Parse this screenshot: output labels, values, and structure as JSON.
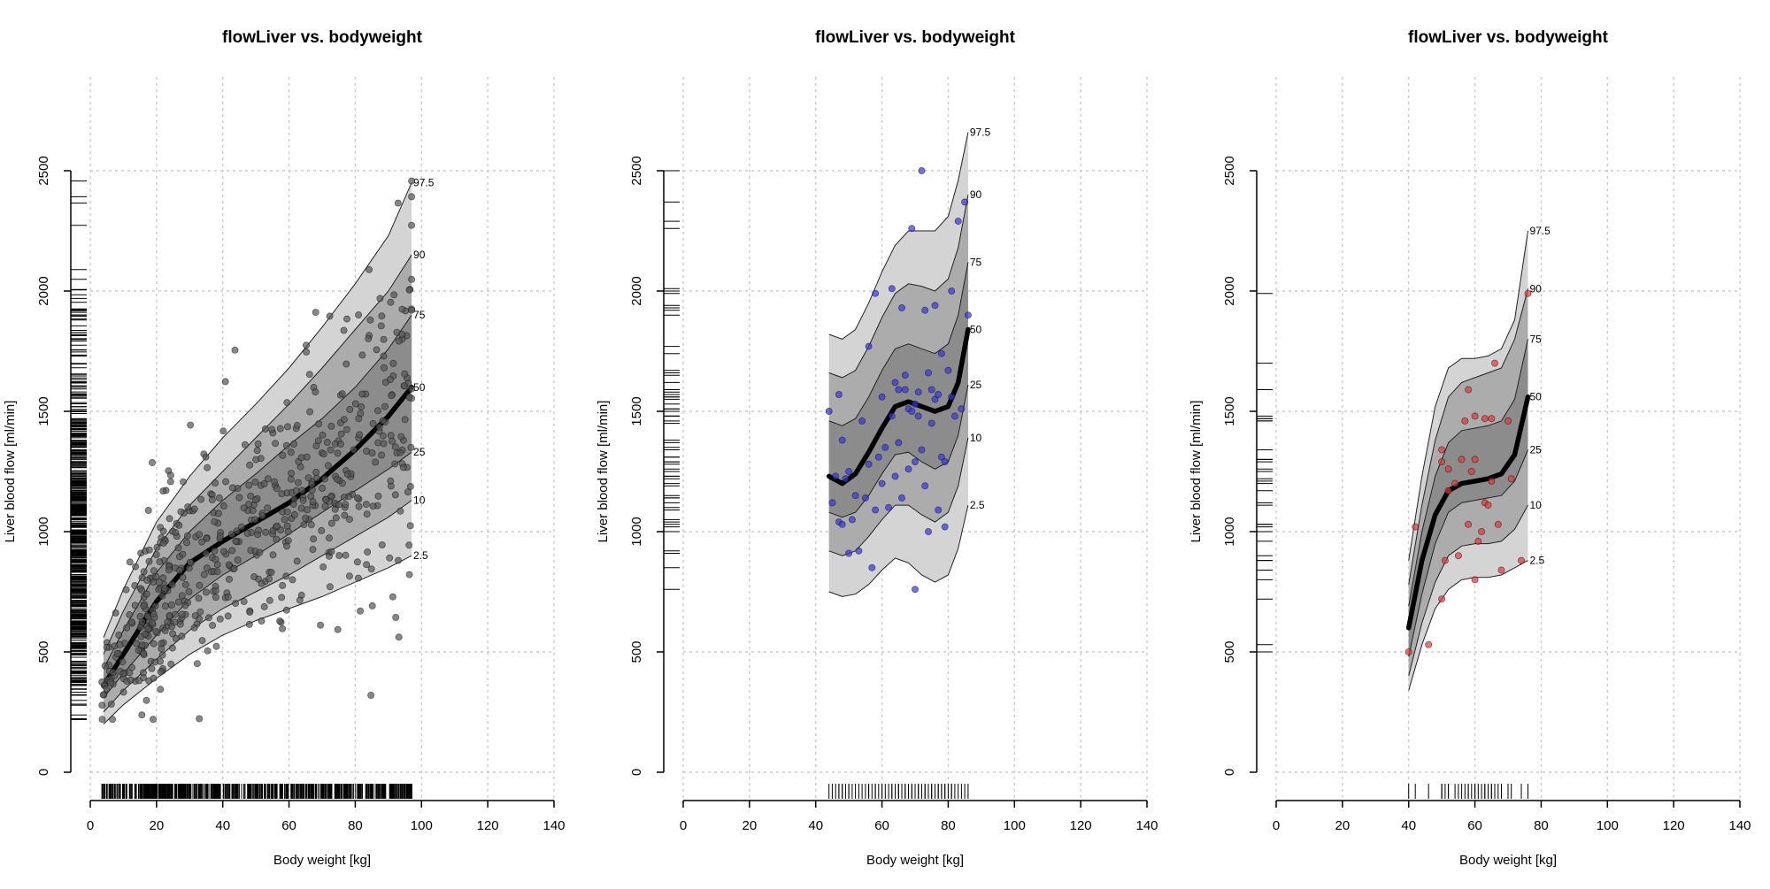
{
  "colors": {
    "gray_points": "#555555",
    "blue_points": "#3333ee",
    "red_points": "#ee3333"
  },
  "chart_data": [
    {
      "type": "scatter",
      "title": "flowLiver vs. bodyweight",
      "xlabel": "Body weight [kg]",
      "ylabel": "Liver blood flow [ml/min]",
      "xlim": [
        0,
        140
      ],
      "ylim": [
        0,
        2500
      ],
      "xticks": [
        0,
        20,
        40,
        60,
        80,
        100,
        120,
        140
      ],
      "yticks": [
        0,
        500,
        1000,
        1500,
        2000,
        2500
      ],
      "grid": true,
      "point_color": "#555555",
      "percentile_labels": [
        "97.5",
        "90",
        "75",
        "50",
        "25",
        "10",
        "2.5"
      ],
      "percentile_x": [
        4,
        10,
        20,
        30,
        40,
        50,
        60,
        70,
        80,
        90,
        97
      ],
      "percentiles": {
        "2.5": [
          200,
          280,
          390,
          490,
          570,
          630,
          680,
          730,
          790,
          850,
          900
        ],
        "10": [
          250,
          340,
          470,
          590,
          680,
          750,
          820,
          900,
          980,
          1060,
          1130
        ],
        "25": [
          310,
          410,
          570,
          720,
          820,
          900,
          990,
          1080,
          1170,
          1260,
          1330
        ],
        "50": [
          360,
          490,
          710,
          870,
          960,
          1040,
          1120,
          1220,
          1340,
          1480,
          1600
        ],
        "75": [
          430,
          590,
          830,
          1000,
          1130,
          1240,
          1360,
          1470,
          1600,
          1760,
          1900
        ],
        "90": [
          490,
          670,
          930,
          1110,
          1250,
          1390,
          1530,
          1680,
          1840,
          2000,
          2150
        ],
        "97.5": [
          560,
          760,
          1040,
          1230,
          1390,
          1530,
          1680,
          1850,
          2030,
          2230,
          2450
        ]
      },
      "n_points": 600,
      "seed": 7
    },
    {
      "type": "scatter",
      "title": "flowLiver vs. bodyweight",
      "xlabel": "Body weight [kg]",
      "ylabel": "Liver blood flow [ml/min]",
      "xlim": [
        0,
        140
      ],
      "ylim": [
        0,
        2500
      ],
      "xticks": [
        0,
        20,
        40,
        60,
        80,
        100,
        120,
        140
      ],
      "yticks": [
        0,
        500,
        1000,
        1500,
        2000,
        2500
      ],
      "grid": true,
      "point_color": "#3333ee",
      "percentile_labels": [
        "97.5",
        "90",
        "75",
        "50",
        "25",
        "10",
        "2.5"
      ],
      "percentile_x": [
        44,
        48,
        52,
        56,
        60,
        64,
        68,
        72,
        76,
        80,
        83,
        86
      ],
      "percentiles": {
        "2.5": [
          750,
          730,
          740,
          780,
          840,
          890,
          870,
          820,
          790,
          820,
          930,
          1110
        ],
        "10": [
          920,
          900,
          920,
          980,
          1050,
          1110,
          1110,
          1070,
          1040,
          1080,
          1190,
          1390
        ],
        "25": [
          1080,
          1060,
          1080,
          1150,
          1240,
          1320,
          1330,
          1290,
          1260,
          1290,
          1400,
          1610
        ],
        "50": [
          1230,
          1200,
          1240,
          1330,
          1430,
          1520,
          1540,
          1520,
          1500,
          1520,
          1620,
          1840
        ],
        "75": [
          1460,
          1440,
          1470,
          1560,
          1670,
          1760,
          1780,
          1760,
          1740,
          1780,
          1900,
          2120
        ],
        "90": [
          1660,
          1640,
          1670,
          1770,
          1890,
          1990,
          2030,
          2020,
          2000,
          2050,
          2180,
          2400
        ],
        "97.5": [
          1820,
          1800,
          1840,
          1950,
          2080,
          2190,
          2250,
          2250,
          2250,
          2310,
          2460,
          2660
        ]
      },
      "points": [
        [
          44,
          1500
        ],
        [
          45,
          1120
        ],
        [
          46,
          1230
        ],
        [
          47,
          1040
        ],
        [
          47,
          1570
        ],
        [
          48,
          1380
        ],
        [
          48,
          1030
        ],
        [
          49,
          1220
        ],
        [
          50,
          910
        ],
        [
          50,
          1250
        ],
        [
          51,
          1050
        ],
        [
          52,
          1150
        ],
        [
          53,
          920
        ],
        [
          54,
          1460
        ],
        [
          55,
          1140
        ],
        [
          56,
          1280
        ],
        [
          56,
          1770
        ],
        [
          57,
          850
        ],
        [
          58,
          1090
        ],
        [
          58,
          1990
        ],
        [
          59,
          1310
        ],
        [
          60,
          1560
        ],
        [
          60,
          1200
        ],
        [
          61,
          1350
        ],
        [
          62,
          1100
        ],
        [
          63,
          2010
        ],
        [
          63,
          1480
        ],
        [
          64,
          1620
        ],
        [
          64,
          1230
        ],
        [
          65,
          1590
        ],
        [
          65,
          1370
        ],
        [
          66,
          1930
        ],
        [
          66,
          1140
        ],
        [
          67,
          1650
        ],
        [
          67,
          1590
        ],
        [
          68,
          1510
        ],
        [
          68,
          1260
        ],
        [
          69,
          1500
        ],
        [
          69,
          2260
        ],
        [
          70,
          1290
        ],
        [
          70,
          760
        ],
        [
          70,
          1530
        ],
        [
          71,
          1580
        ],
        [
          71,
          1480
        ],
        [
          72,
          2500
        ],
        [
          72,
          1340
        ],
        [
          73,
          1920
        ],
        [
          73,
          1190
        ],
        [
          74,
          1660
        ],
        [
          74,
          1000
        ],
        [
          75,
          1590
        ],
        [
          75,
          1450
        ],
        [
          76,
          1550
        ],
        [
          76,
          1940
        ],
        [
          77,
          1570
        ],
        [
          77,
          1090
        ],
        [
          78,
          1740
        ],
        [
          78,
          1310
        ],
        [
          79,
          1290
        ],
        [
          79,
          1020
        ],
        [
          80,
          1670
        ],
        [
          81,
          2000
        ],
        [
          81,
          1560
        ],
        [
          82,
          1480
        ],
        [
          83,
          2290
        ],
        [
          84,
          1510
        ],
        [
          85,
          2370
        ],
        [
          86,
          1900
        ]
      ]
    },
    {
      "type": "scatter",
      "title": "flowLiver vs. bodyweight",
      "xlabel": "Body weight [kg]",
      "ylabel": "Liver blood flow [ml/min]",
      "xlim": [
        0,
        140
      ],
      "ylim": [
        0,
        2500
      ],
      "xticks": [
        0,
        20,
        40,
        60,
        80,
        100,
        120,
        140
      ],
      "yticks": [
        0,
        500,
        1000,
        1500,
        2000,
        2500
      ],
      "grid": true,
      "point_color": "#ee3333",
      "percentile_labels": [
        "97.5",
        "90",
        "75",
        "50",
        "25",
        "10",
        "2.5"
      ],
      "percentile_x": [
        40,
        44,
        48,
        52,
        56,
        60,
        64,
        68,
        72,
        76
      ],
      "percentiles": {
        "2.5": [
          340,
          530,
          680,
          760,
          800,
          810,
          810,
          820,
          850,
          880
        ],
        "10": [
          400,
          620,
          790,
          900,
          940,
          950,
          950,
          960,
          1010,
          1110
        ],
        "25": [
          480,
          740,
          950,
          1080,
          1120,
          1130,
          1140,
          1150,
          1210,
          1340
        ],
        "50": [
          600,
          880,
          1070,
          1170,
          1200,
          1210,
          1220,
          1240,
          1320,
          1560
        ],
        "75": [
          690,
          1000,
          1230,
          1370,
          1420,
          1430,
          1440,
          1460,
          1550,
          1800
        ],
        "90": [
          780,
          1110,
          1380,
          1560,
          1620,
          1640,
          1660,
          1680,
          1800,
          2010
        ],
        "97.5": [
          880,
          1230,
          1520,
          1680,
          1720,
          1720,
          1730,
          1760,
          1880,
          2250
        ]
      },
      "points": [
        [
          40,
          500
        ],
        [
          42,
          1020
        ],
        [
          46,
          530
        ],
        [
          50,
          720
        ],
        [
          50,
          1290
        ],
        [
          50,
          1340
        ],
        [
          51,
          880
        ],
        [
          52,
          1260
        ],
        [
          52,
          1170
        ],
        [
          54,
          1200
        ],
        [
          55,
          900
        ],
        [
          56,
          1300
        ],
        [
          57,
          1460
        ],
        [
          58,
          1590
        ],
        [
          58,
          1030
        ],
        [
          59,
          1250
        ],
        [
          60,
          1480
        ],
        [
          60,
          1300
        ],
        [
          60,
          800
        ],
        [
          61,
          960
        ],
        [
          62,
          1000
        ],
        [
          63,
          1470
        ],
        [
          63,
          1120
        ],
        [
          64,
          1110
        ],
        [
          65,
          1470
        ],
        [
          65,
          1210
        ],
        [
          66,
          1700
        ],
        [
          67,
          1030
        ],
        [
          68,
          840
        ],
        [
          70,
          1460
        ],
        [
          71,
          1220
        ],
        [
          74,
          880
        ],
        [
          76,
          1990
        ]
      ]
    }
  ]
}
